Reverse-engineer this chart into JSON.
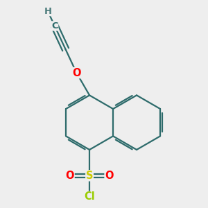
{
  "bg_color": "#eeeeee",
  "bond_color": "#2d6b6b",
  "bond_width": 1.6,
  "dbo": 0.022,
  "atom_colors": {
    "O": "#ff0000",
    "S": "#cccc00",
    "Cl": "#99cc00",
    "C": "#2d6b6b",
    "H": "#4a7a7a"
  },
  "font_size": 10.5,
  "fig_size": [
    3.0,
    3.0
  ],
  "dpi": 100,
  "bl": 0.32
}
